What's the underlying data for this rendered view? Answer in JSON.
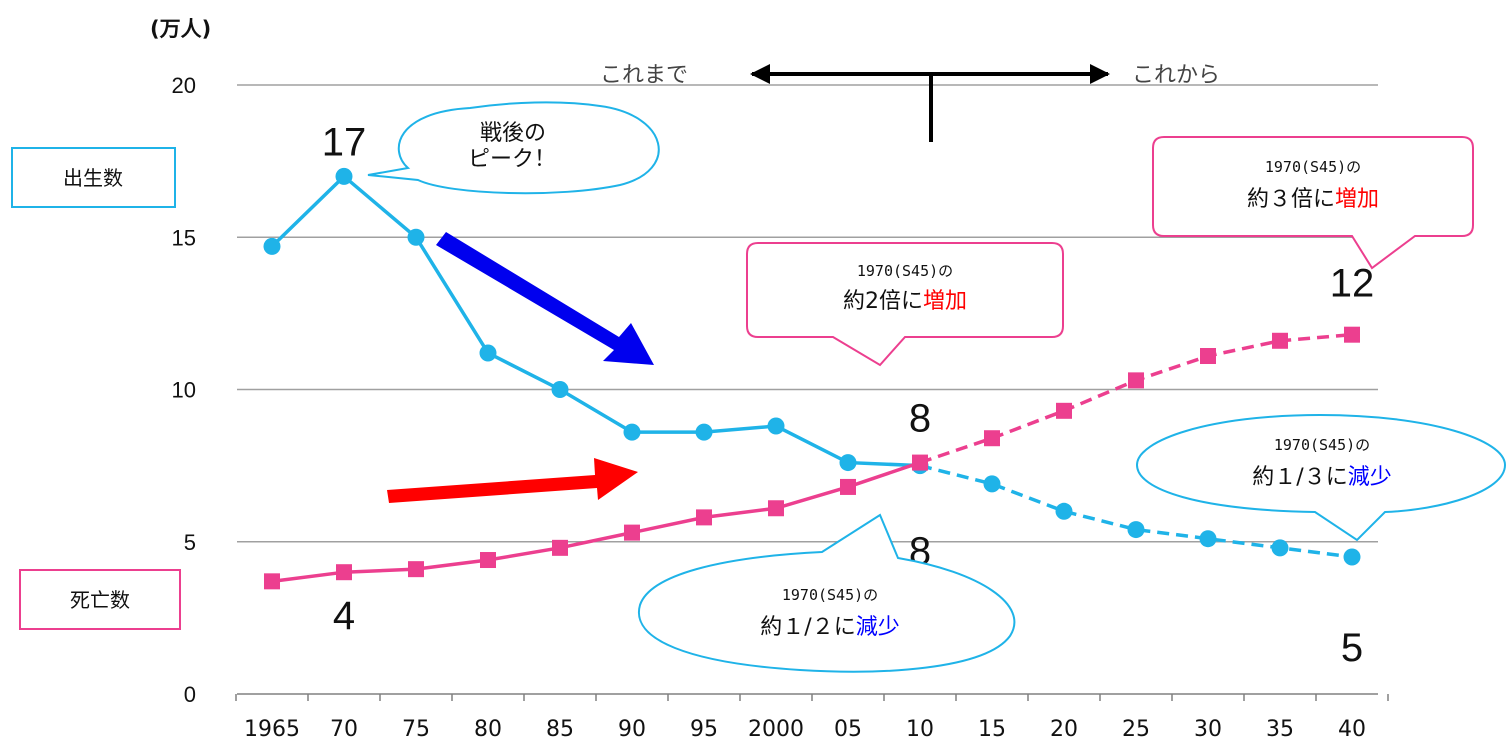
{
  "chart_data": {
    "type": "line",
    "unit": "(万人)",
    "ylim": [
      0,
      20
    ],
    "yticks": [
      "0",
      "5",
      "10",
      "15",
      "20"
    ],
    "x": [
      "1965",
      "70",
      "75",
      "80",
      "85",
      "90",
      "95",
      "2000",
      "05",
      "10",
      "15",
      "20",
      "25",
      "30",
      "35",
      "40"
    ],
    "series": [
      {
        "name": "出生数",
        "color": "#1fb3e8",
        "marker": "circle",
        "values": [
          14.7,
          17.0,
          15.0,
          11.2,
          10.0,
          8.6,
          8.6,
          8.8,
          7.6,
          7.5,
          6.9,
          6.0,
          5.4,
          5.1,
          4.8,
          4.5
        ],
        "solid_until_index": 9
      },
      {
        "name": "死亡数",
        "color": "#ec3f8f",
        "marker": "square",
        "values": [
          3.7,
          4.0,
          4.1,
          4.4,
          4.8,
          5.3,
          5.8,
          6.1,
          6.8,
          7.6,
          8.4,
          9.3,
          10.3,
          11.1,
          11.6,
          11.8
        ],
        "solid_until_index": 9
      }
    ],
    "header": {
      "left": "これまで",
      "right": "これから"
    },
    "value_labels": [
      {
        "text": "17",
        "at_index": 1,
        "y": 17
      },
      {
        "text": "4",
        "at_index": 1,
        "y": 4
      },
      {
        "text": "8",
        "at_index": 9,
        "y": 7.6
      },
      {
        "text": "8",
        "at_index": 9,
        "y": 7.6
      },
      {
        "text": "12",
        "at_index": 15,
        "y": 11.8
      },
      {
        "text": "5",
        "at_index": 15,
        "y": 4.5
      }
    ],
    "callouts": {
      "peak": {
        "line1": "戦後の",
        "line2": "ピーク！"
      },
      "deaths_2010": {
        "line1": "1970(S45)の",
        "line2_pre": "約2倍に",
        "line2_hi": "増加",
        "hi_color": "#ff0000"
      },
      "deaths_2040": {
        "line1": "1970(S45)の",
        "line2_pre": "約３倍に",
        "line2_hi": "増加",
        "hi_color": "#ff0000"
      },
      "births_2010": {
        "line1": "1970(S45)の",
        "line2_pre": "約１/２に",
        "line2_hi": "減少",
        "hi_color": "#0000ff"
      },
      "births_2040": {
        "line1": "1970(S45)の",
        "line2_pre": "約１/３に",
        "line2_hi": "減少",
        "hi_color": "#0000ff"
      }
    },
    "legend_boxes": {
      "births": {
        "text": "出生数",
        "color": "#1fb3e8"
      },
      "deaths": {
        "text": "死亡数",
        "color": "#ec3f8f"
      }
    },
    "trend_arrows": {
      "down": "#0000ee",
      "up": "#ff0000"
    },
    "grid": true
  }
}
